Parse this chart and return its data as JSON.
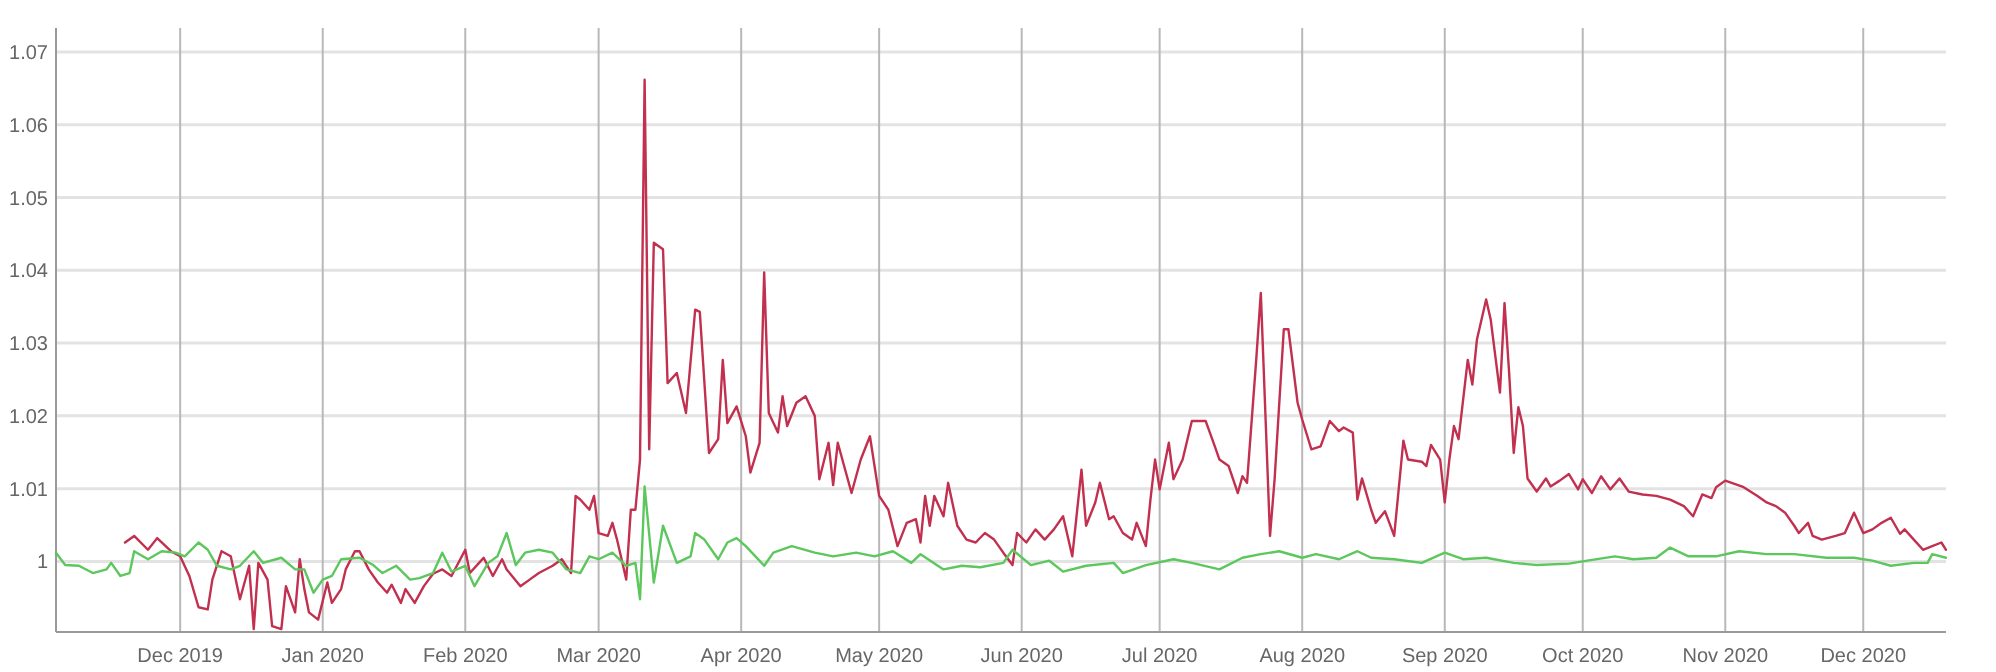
{
  "chart_data": {
    "type": "line",
    "xlim": [
      "2019-11-04",
      "2020-12-19"
    ],
    "ylim": [
      0.9903,
      1.0733
    ],
    "xticks": [
      {
        "value": "2019-12-01",
        "label": "Dec 2019"
      },
      {
        "value": "2020-01-01",
        "label": "Jan 2020"
      },
      {
        "value": "2020-02-01",
        "label": "Feb 2020"
      },
      {
        "value": "2020-03-01",
        "label": "Mar 2020"
      },
      {
        "value": "2020-04-01",
        "label": "Apr 2020"
      },
      {
        "value": "2020-05-01",
        "label": "May 2020"
      },
      {
        "value": "2020-06-01",
        "label": "Jun 2020"
      },
      {
        "value": "2020-07-01",
        "label": "Jul 2020"
      },
      {
        "value": "2020-08-01",
        "label": "Aug 2020"
      },
      {
        "value": "2020-09-01",
        "label": "Sep 2020"
      },
      {
        "value": "2020-10-01",
        "label": "Oct 2020"
      },
      {
        "value": "2020-11-01",
        "label": "Nov 2020"
      },
      {
        "value": "2020-12-01",
        "label": "Dec 2020"
      }
    ],
    "yticks": [
      1,
      1.01,
      1.02,
      1.03,
      1.04,
      1.05,
      1.06,
      1.07
    ],
    "grid": true,
    "series": [
      {
        "color": "#c2304f",
        "x": [
          "2019-11-19",
          "2019-11-21",
          "2019-11-24",
          "2019-11-26",
          "2019-11-29",
          "2019-12-01",
          "2019-12-03",
          "2019-12-05",
          "2019-12-07",
          "2019-12-08",
          "2019-12-10",
          "2019-12-12",
          "2019-12-14",
          "2019-12-16",
          "2019-12-17",
          "2019-12-18",
          "2019-12-20",
          "2019-12-21",
          "2019-12-23",
          "2019-12-24",
          "2019-12-26",
          "2019-12-27",
          "2019-12-28",
          "2019-12-29",
          "2019-12-31",
          "2020-01-02",
          "2020-01-03",
          "2020-01-05",
          "2020-01-06",
          "2020-01-08",
          "2020-01-09",
          "2020-01-11",
          "2020-01-13",
          "2020-01-15",
          "2020-01-16",
          "2020-01-18",
          "2020-01-19",
          "2020-01-21",
          "2020-01-23",
          "2020-01-25",
          "2020-01-27",
          "2020-01-29",
          "2020-02-01",
          "2020-02-02",
          "2020-02-04",
          "2020-02-05",
          "2020-02-07",
          "2020-02-09",
          "2020-02-10",
          "2020-02-13",
          "2020-02-15",
          "2020-02-17",
          "2020-02-20",
          "2020-02-22",
          "2020-02-24",
          "2020-02-25",
          "2020-02-26",
          "2020-02-28",
          "2020-02-29",
          "2020-03-01",
          "2020-03-03",
          "2020-03-04",
          "2020-03-05",
          "2020-03-07",
          "2020-03-08",
          "2020-03-09",
          "2020-03-10",
          "2020-03-11",
          "2020-03-12",
          "2020-03-13",
          "2020-03-15",
          "2020-03-16",
          "2020-03-18",
          "2020-03-20",
          "2020-03-22",
          "2020-03-23",
          "2020-03-25",
          "2020-03-27",
          "2020-03-28",
          "2020-03-29",
          "2020-03-31",
          "2020-04-02",
          "2020-04-03",
          "2020-04-05",
          "2020-04-06",
          "2020-04-07",
          "2020-04-09",
          "2020-04-10",
          "2020-04-11",
          "2020-04-13",
          "2020-04-15",
          "2020-04-17",
          "2020-04-18",
          "2020-04-20",
          "2020-04-21",
          "2020-04-22",
          "2020-04-24",
          "2020-04-25",
          "2020-04-27",
          "2020-04-29",
          "2020-05-01",
          "2020-05-03",
          "2020-05-05",
          "2020-05-07",
          "2020-05-09",
          "2020-05-10",
          "2020-05-11",
          "2020-05-12",
          "2020-05-13",
          "2020-05-15",
          "2020-05-16",
          "2020-05-18",
          "2020-05-20",
          "2020-05-22",
          "2020-05-24",
          "2020-05-26",
          "2020-05-28",
          "2020-05-30",
          "2020-05-31",
          "2020-06-02",
          "2020-06-04",
          "2020-06-06",
          "2020-06-08",
          "2020-06-10",
          "2020-06-12",
          "2020-06-14",
          "2020-06-15",
          "2020-06-17",
          "2020-06-18",
          "2020-06-20",
          "2020-06-21",
          "2020-06-23",
          "2020-06-25",
          "2020-06-26",
          "2020-06-28",
          "2020-06-29",
          "2020-06-30",
          "2020-07-01",
          "2020-07-03",
          "2020-07-04",
          "2020-07-06",
          "2020-07-08",
          "2020-07-11",
          "2020-07-13",
          "2020-07-14",
          "2020-07-16",
          "2020-07-18",
          "2020-07-19",
          "2020-07-20",
          "2020-07-22",
          "2020-07-23",
          "2020-07-25",
          "2020-07-26",
          "2020-07-28",
          "2020-07-29",
          "2020-07-31",
          "2020-08-01",
          "2020-08-03",
          "2020-08-05",
          "2020-08-07",
          "2020-08-09",
          "2020-08-10",
          "2020-08-12",
          "2020-08-13",
          "2020-08-14",
          "2020-08-16",
          "2020-08-17",
          "2020-08-19",
          "2020-08-21",
          "2020-08-23",
          "2020-08-24",
          "2020-08-27",
          "2020-08-28",
          "2020-08-29",
          "2020-08-31",
          "2020-09-01",
          "2020-09-02",
          "2020-09-03",
          "2020-09-04",
          "2020-09-06",
          "2020-09-07",
          "2020-09-08",
          "2020-09-10",
          "2020-09-11",
          "2020-09-13",
          "2020-09-14",
          "2020-09-15",
          "2020-09-16",
          "2020-09-17",
          "2020-09-18",
          "2020-09-19",
          "2020-09-21",
          "2020-09-23",
          "2020-09-24",
          "2020-09-26",
          "2020-09-28",
          "2020-09-30",
          "2020-10-01",
          "2020-10-03",
          "2020-10-05",
          "2020-10-07",
          "2020-10-09",
          "2020-10-11",
          "2020-10-14",
          "2020-10-17",
          "2020-10-20",
          "2020-10-23",
          "2020-10-25",
          "2020-10-27",
          "2020-10-29",
          "2020-10-30",
          "2020-11-01",
          "2020-11-05",
          "2020-11-08",
          "2020-11-10",
          "2020-11-12",
          "2020-11-14",
          "2020-11-16",
          "2020-11-17",
          "2020-11-19",
          "2020-11-20",
          "2020-11-22",
          "2020-11-25",
          "2020-11-27",
          "2020-11-29",
          "2020-12-01",
          "2020-12-03",
          "2020-12-05",
          "2020-12-07",
          "2020-12-09",
          "2020-12-10",
          "2020-12-12",
          "2020-12-14",
          "2020-12-16",
          "2020-12-18",
          "2020-12-19"
        ],
        "values": [
          1.0026,
          1.0035,
          1.0016,
          1.0032,
          1.0014,
          1.0007,
          0.998,
          0.9937,
          0.9934,
          0.9975,
          1.0014,
          1.0007,
          0.9948,
          0.9994,
          0.9907,
          0.9998,
          0.9975,
          0.9911,
          0.9907,
          0.9966,
          0.993,
          1.0003,
          0.9962,
          0.993,
          0.992,
          0.9971,
          0.9943,
          0.9962,
          0.9989,
          1.0014,
          1.0014,
          0.9989,
          0.9971,
          0.9957,
          0.9968,
          0.9943,
          0.9962,
          0.9943,
          0.9966,
          0.9983,
          0.9989,
          0.998,
          1.0016,
          0.9984,
          0.9998,
          1.0005,
          0.998,
          1.0003,
          0.9989,
          0.9966,
          0.9975,
          0.9984,
          0.9994,
          1.0003,
          0.9984,
          1.009,
          1.0085,
          1.0071,
          1.009,
          1.0039,
          1.0035,
          1.0053,
          1.003,
          0.9975,
          1.0071,
          1.0071,
          1.014,
          1.0662,
          1.0154,
          1.0438,
          1.0429,
          1.0245,
          1.0259,
          1.0204,
          1.0346,
          1.0343,
          1.0149,
          1.0168,
          1.0277,
          1.019,
          1.0213,
          1.0172,
          1.0122,
          1.0163,
          1.0397,
          1.0204,
          1.0177,
          1.0227,
          1.0186,
          1.0218,
          1.0227,
          1.02,
          1.0113,
          1.0163,
          1.0105,
          1.0163,
          1.0117,
          1.0094,
          1.014,
          1.0172,
          1.009,
          1.0071,
          1.0021,
          1.0053,
          1.0058,
          1.0026,
          1.009,
          1.0049,
          1.009,
          1.0062,
          1.0108,
          1.0049,
          1.003,
          1.0026,
          1.0039,
          1.003,
          1.0012,
          0.9995,
          1.0039,
          1.0026,
          1.0044,
          1.003,
          1.0044,
          1.0062,
          1.0007,
          1.0126,
          1.0049,
          1.0081,
          1.0108,
          1.0058,
          1.0062,
          1.0039,
          1.003,
          1.0053,
          1.0021,
          1.0085,
          1.014,
          1.0099,
          1.0163,
          1.0113,
          1.014,
          1.0193,
          1.0193,
          1.0158,
          1.014,
          1.0131,
          1.0094,
          1.0117,
          1.0108,
          1.0277,
          1.0369,
          1.0035,
          1.0113,
          1.0319,
          1.0319,
          1.0218,
          1.0195,
          1.0154,
          1.0158,
          1.0193,
          1.0179,
          1.0184,
          1.0177,
          1.0085,
          1.0114,
          1.0071,
          1.0053,
          1.0069,
          1.0035,
          1.0166,
          1.014,
          1.0137,
          1.0131,
          1.016,
          1.014,
          1.0081,
          1.014,
          1.0186,
          1.0168,
          1.0277,
          1.0243,
          1.0305,
          1.036,
          1.0332,
          1.0232,
          1.0355,
          1.0259,
          1.0149,
          1.0212,
          1.0186,
          1.0114,
          1.0096,
          1.0114,
          1.0103,
          1.0111,
          1.012,
          1.0099,
          1.0113,
          1.0094,
          1.0117,
          1.0099,
          1.0114,
          1.0096,
          1.0092,
          1.009,
          1.0085,
          1.0076,
          1.0062,
          1.0092,
          1.0087,
          1.0102,
          1.0111,
          1.0102,
          1.009,
          1.0081,
          1.0076,
          1.0067,
          1.0049,
          1.0039,
          1.0053,
          1.0035,
          1.003,
          1.0035,
          1.0039,
          1.0067,
          1.0039,
          1.0044,
          1.0053,
          1.006,
          1.0038,
          1.0044,
          1.003,
          1.0016,
          1.0021,
          1.0026,
          1.0016
        ]
      },
      {
        "color": "#5cc75c",
        "x": [
          "2019-11-04",
          "2019-11-06",
          "2019-11-09",
          "2019-11-12",
          "2019-11-15",
          "2019-11-16",
          "2019-11-18",
          "2019-11-20",
          "2019-11-21",
          "2019-11-24",
          "2019-11-27",
          "2019-11-30",
          "2019-12-02",
          "2019-12-05",
          "2019-12-07",
          "2019-12-09",
          "2019-12-12",
          "2019-12-14",
          "2019-12-17",
          "2019-12-19",
          "2019-12-23",
          "2019-12-26",
          "2019-12-28",
          "2019-12-30",
          "2020-01-01",
          "2020-01-03",
          "2020-01-05",
          "2020-01-09",
          "2020-01-12",
          "2020-01-14",
          "2020-01-17",
          "2020-01-20",
          "2020-01-22",
          "2020-01-25",
          "2020-01-27",
          "2020-01-29",
          "2020-02-01",
          "2020-02-03",
          "2020-02-06",
          "2020-02-08",
          "2020-02-10",
          "2020-02-12",
          "2020-02-14",
          "2020-02-17",
          "2020-02-20",
          "2020-02-23",
          "2020-02-26",
          "2020-02-28",
          "2020-03-01",
          "2020-03-04",
          "2020-03-07",
          "2020-03-09",
          "2020-03-10",
          "2020-03-11",
          "2020-03-13",
          "2020-03-15",
          "2020-03-18",
          "2020-03-21",
          "2020-03-22",
          "2020-03-24",
          "2020-03-27",
          "2020-03-29",
          "2020-03-31",
          "2020-04-02",
          "2020-04-06",
          "2020-04-08",
          "2020-04-12",
          "2020-04-17",
          "2020-04-21",
          "2020-04-26",
          "2020-04-30",
          "2020-05-04",
          "2020-05-08",
          "2020-05-10",
          "2020-05-15",
          "2020-05-19",
          "2020-05-23",
          "2020-05-28",
          "2020-05-30",
          "2020-06-03",
          "2020-06-07",
          "2020-06-10",
          "2020-06-15",
          "2020-06-21",
          "2020-06-23",
          "2020-06-28",
          "2020-07-04",
          "2020-07-08",
          "2020-07-14",
          "2020-07-19",
          "2020-07-23",
          "2020-07-27",
          "2020-08-01",
          "2020-08-04",
          "2020-08-09",
          "2020-08-13",
          "2020-08-16",
          "2020-08-21",
          "2020-08-27",
          "2020-09-01",
          "2020-09-05",
          "2020-09-10",
          "2020-09-16",
          "2020-09-21",
          "2020-09-28",
          "2020-10-02",
          "2020-10-08",
          "2020-10-12",
          "2020-10-17",
          "2020-10-20",
          "2020-10-24",
          "2020-10-30",
          "2020-11-04",
          "2020-11-10",
          "2020-11-16",
          "2020-11-23",
          "2020-11-29",
          "2020-12-03",
          "2020-12-07",
          "2020-12-12",
          "2020-12-15",
          "2020-12-16",
          "2020-12-19"
        ],
        "values": [
          1.0012,
          0.9995,
          0.9994,
          0.9984,
          0.9989,
          0.9998,
          0.998,
          0.9984,
          1.0014,
          1.0003,
          1.0014,
          1.0012,
          1.0007,
          1.0026,
          1.0016,
          0.9994,
          0.9989,
          0.9994,
          1.0014,
          0.9998,
          1.0005,
          0.9989,
          0.9989,
          0.9957,
          0.9975,
          0.998,
          1.0003,
          1.0005,
          0.9995,
          0.9984,
          0.9994,
          0.9975,
          0.9977,
          0.9984,
          1.0012,
          0.9986,
          0.9994,
          0.9966,
          0.9998,
          1.0007,
          1.0039,
          0.9995,
          1.0012,
          1.0016,
          1.0012,
          0.9989,
          0.9984,
          1.0007,
          1.0003,
          1.0012,
          0.9994,
          0.9998,
          0.9948,
          1.0103,
          0.9971,
          1.0049,
          0.9998,
          1.0007,
          1.0039,
          1.003,
          1.0003,
          1.0026,
          1.0032,
          1.0021,
          0.9994,
          1.0012,
          1.0021,
          1.0012,
          1.0007,
          1.0012,
          1.0007,
          1.0014,
          0.9998,
          1.001,
          0.9989,
          0.9994,
          0.9992,
          0.9998,
          1.0016,
          0.9995,
          1.0001,
          0.9986,
          0.9994,
          0.9998,
          0.9984,
          0.9995,
          1.0003,
          0.9998,
          0.9989,
          1.0005,
          1.001,
          1.0014,
          1.0005,
          1.001,
          1.0003,
          1.0014,
          1.0005,
          1.0003,
          0.9998,
          1.0012,
          1.0003,
          1.0005,
          0.9998,
          0.9995,
          0.9997,
          1.0001,
          1.0007,
          1.0003,
          1.0005,
          1.0019,
          1.0007,
          1.0007,
          1.0014,
          1.001,
          1.001,
          1.0005,
          1.0005,
          1.0001,
          0.9994,
          0.9998,
          0.9998,
          1.001,
          1.0005
        ]
      }
    ]
  }
}
